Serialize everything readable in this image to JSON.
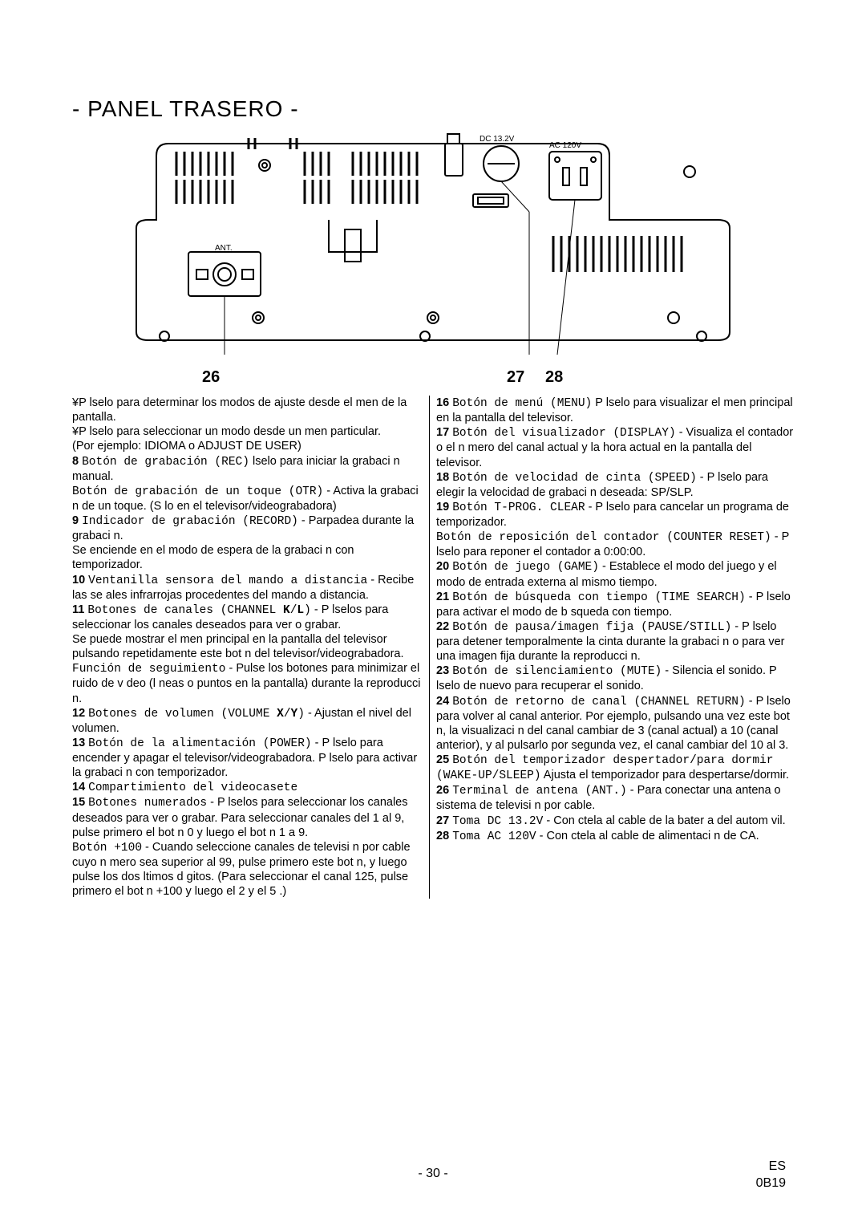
{
  "title": "- PANEL TRASERO -",
  "diagram": {
    "label_dc": "DC 13.2V",
    "label_ac": "AC 120V",
    "label_ant": "ANT.",
    "stroke": "#000000",
    "fill": "#ffffff"
  },
  "callouts": {
    "n26": "26",
    "n27": "27",
    "n28": "28"
  },
  "left_html": "¥P lselo para determinar los modos de ajuste desde el men de la pantalla.<br>¥P lselo para seleccionar un modo desde un men particular.<br>(Por ejemplo: IDIOMA o ADJUST DE USER)<br><span class='bold'>8</span> <span class='mono'>Botón de grabación (REC)</span> lselo para iniciar la grabaci n manual.<br><span class='mono'>Botón de grabación de un toque (OTR)</span> - Activa la grabaci n de un toque. (S lo en el televisor/videograbadora)<br><span class='bold'>9</span> <span class='mono'>Indicador de grabación (RECORD)</span> - Parpadea durante la grabaci n.<br>Se enciende en el modo de espera de la grabaci n con temporizador.<br><span class='bold'>10</span> <span class='mono'>Ventanilla sensora del mando a distancia</span> - Recibe las se ales infrarrojas procedentes del mando a distancia.<br><span class='bold'>11</span> <span class='mono'>Botones de canales (CHANNEL <b>K</b>/<b>L</b>)</span> - P lselos para seleccionar los canales deseados para ver o grabar.<br>Se puede mostrar el men principal en la pantalla del televisor pulsando repetidamente este bot n del televisor/videograbadora.<br><span class='mono'>Función de seguimiento</span> - Pulse los botones para minimizar el ruido de v deo (l neas o puntos en la pantalla) durante la reproducci n.<br><span class='bold'>12</span> <span class='mono'>Botones de volumen (VOLUME <b>X</b>/<b>Y</b>)</span> - Ajustan el nivel del volumen.<br><span class='bold'>13</span> <span class='mono'>Botón de la alimentación (POWER)</span> - P lselo para encender y apagar el televisor/videograbadora. P lselo para activar la grabaci n con temporizador.<br><span class='bold'>14</span> <span class='mono'>Compartimiento del videocasete</span><br><span class='bold'>15</span> <span class='mono'>Botones numerados</span> - P lselos para seleccionar los canales deseados para ver o grabar. Para seleccionar canales del 1 al 9, pulse primero el bot n 0 y luego el bot n 1 a 9.<br><span class='mono'>Botón +100</span> - Cuando seleccione canales de televisi n por cable cuyo n mero sea superior al 99, pulse primero este bot n, y luego pulse los dos ltimos d gitos. (Para seleccionar el canal 125, pulse primero el bot n +100 y luego el 2 y el 5 .)",
  "right_html": "<span class='bold'>16</span> <span class='mono'>Botón de menú (MENU)</span> P lselo para visualizar el men principal en la pantalla del televisor.<br><span class='bold'>17</span> <span class='mono'>Botón del visualizador (DISPLAY)</span> - Visualiza el contador o el n mero del canal actual y la hora actual en la pantalla del televisor.<br><span class='bold'>18</span> <span class='mono'>Botón de velocidad de cinta (SPEED)</span> - P lselo para elegir la velocidad de grabaci n deseada: SP/SLP.<br><span class='bold'>19</span> <span class='mono'>Botón T-PROG. CLEAR</span> - P lselo para cancelar un programa de temporizador.<br><span class='mono'>Botón de reposición del contador (COUNTER RESET)</span> - P lselo para reponer el contador a 0:00:00.<br><span class='bold'>20</span> <span class='mono'>Botón de juego (GAME)</span> - Establece el modo del juego y el modo de entrada externa al mismo tiempo.<br><span class='bold'>21</span> <span class='mono'>Botón de búsqueda con tiempo (TIME SEARCH)</span> - P lselo para activar el modo de b squeda con tiempo.<br><span class='bold'>22</span> <span class='mono'>Botón de pausa/imagen fija (PAUSE/STILL)</span> - P lselo para detener temporalmente la cinta durante la grabaci n o para ver una imagen fija durante la reproducci n.<br><span class='bold'>23</span> <span class='mono'>Botón de silenciamiento (MUTE)</span> - Silencia el sonido. P lselo de nuevo para recuperar el sonido.<br><span class='bold'>24</span> <span class='mono'>Botón de retorno de canal (CHANNEL RETURN)</span> - P lselo para volver al canal anterior. Por ejemplo, pulsando una vez este bot n, la visualizaci n del canal cambiar de 3 (canal actual) a 10 (canal anterior), y al pulsarlo por segunda vez, el canal cambiar del 10 al 3.<br><span class='bold'>25</span> <span class='mono'>Botón del temporizador despertador/para dormir (WAKE-UP/SLEEP)</span> Ajusta el temporizador para despertarse/dormir.<br><span class='bold'>26</span> <span class='mono'>Terminal de antena (ANT.)</span> - Para conectar una antena o sistema de televisi n por cable.<br><span class='bold'>27</span> <span class='mono'>Toma DC 13.2V</span> - Con ctela al cable de la bater a del autom vil.<br><span class='bold'>28</span> <span class='mono'>Toma AC 120V</span> - Con ctela al cable de alimentaci n de CA.",
  "pagenum": "- 30 -",
  "footer_es": "ES",
  "footer_code": "0B19"
}
